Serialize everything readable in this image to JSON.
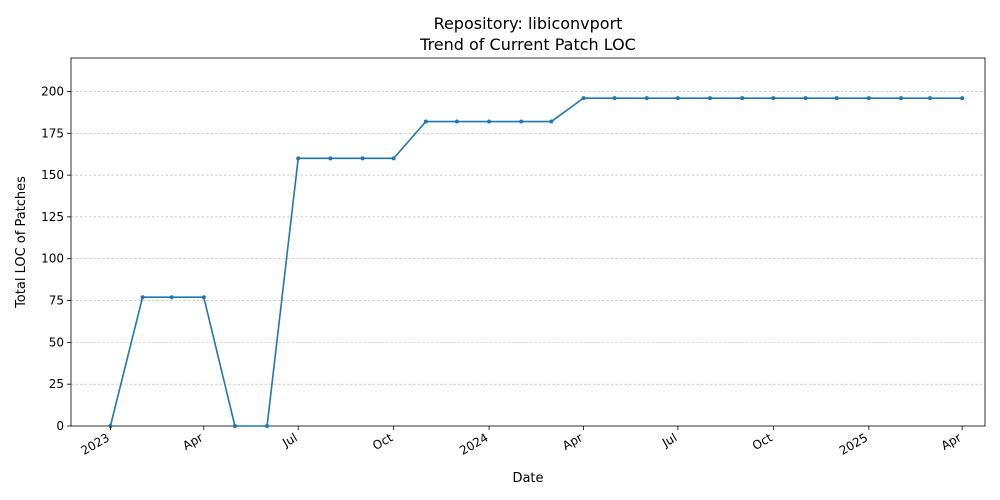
{
  "chart_data": {
    "type": "line",
    "title_lines": [
      "Repository: libiconvport",
      "Trend of Current Patch LOC"
    ],
    "xlabel": "Date",
    "ylabel": "Total LOC of Patches",
    "ylim": [
      0,
      220
    ],
    "yticks": [
      0,
      25,
      50,
      75,
      100,
      125,
      150,
      175,
      200
    ],
    "xlim": [
      "2022-11-24",
      "2025-04-23"
    ],
    "xticks": [
      {
        "date": "2023-01-01",
        "label": "2023"
      },
      {
        "date": "2023-04-01",
        "label": "Apr"
      },
      {
        "date": "2023-07-01",
        "label": "Jul"
      },
      {
        "date": "2023-10-01",
        "label": "Oct"
      },
      {
        "date": "2024-01-01",
        "label": "2024"
      },
      {
        "date": "2024-04-01",
        "label": "Apr"
      },
      {
        "date": "2024-07-01",
        "label": "Jul"
      },
      {
        "date": "2024-10-01",
        "label": "Oct"
      },
      {
        "date": "2025-01-01",
        "label": "2025"
      },
      {
        "date": "2025-04-01",
        "label": "Apr"
      }
    ],
    "grid": "y-dashed",
    "color": "#1f77b4",
    "series": [
      {
        "x": [
          "2023-01-01",
          "2023-02-01",
          "2023-03-01",
          "2023-04-01",
          "2023-05-01",
          "2023-06-01",
          "2023-07-01",
          "2023-08-01",
          "2023-09-01",
          "2023-10-01",
          "2023-11-01",
          "2023-12-01",
          "2024-01-01",
          "2024-02-01",
          "2024-03-01",
          "2024-04-01",
          "2024-05-01",
          "2024-06-01",
          "2024-07-01",
          "2024-08-01",
          "2024-09-01",
          "2024-10-01",
          "2024-11-01",
          "2024-12-01",
          "2025-01-01",
          "2025-02-01",
          "2025-03-01",
          "2025-04-01"
        ],
        "y": [
          0,
          77,
          77,
          77,
          0,
          0,
          160,
          160,
          160,
          160,
          182,
          182,
          182,
          182,
          182,
          196,
          196,
          196,
          196,
          196,
          196,
          196,
          196,
          196,
          196,
          196,
          196,
          196
        ]
      }
    ]
  }
}
